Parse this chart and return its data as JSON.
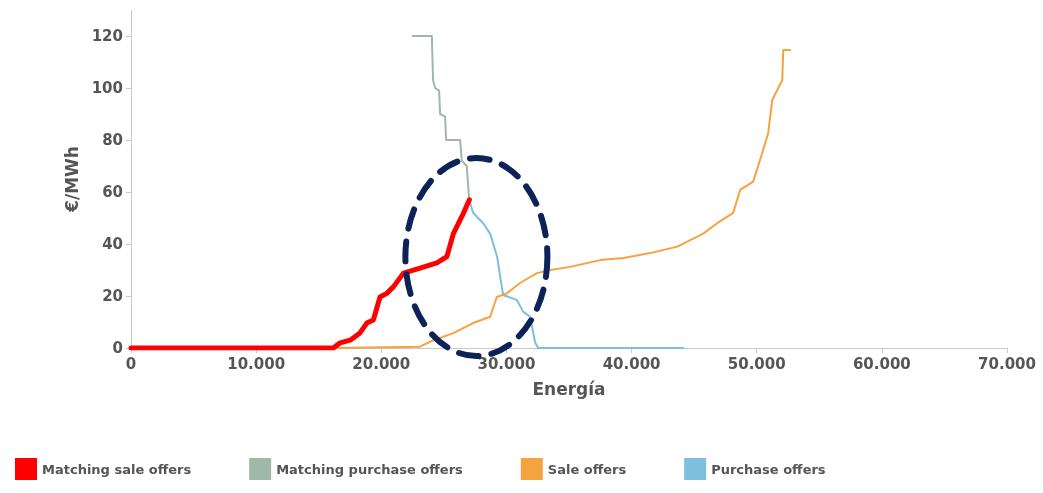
{
  "chart_data": {
    "type": "line",
    "xlabel": "Energía",
    "ylabel": "€/MWh",
    "xlim": [
      0,
      70000
    ],
    "xticks": [
      0,
      {
        "value": 10000,
        "label": "10.000"
      },
      {
        "value": 20000,
        "label": "20.000"
      },
      {
        "value": 30000,
        "label": "30.000"
      },
      {
        "value": 40000,
        "label": "40.000"
      },
      {
        "value": 50000,
        "label": "50.000"
      },
      {
        "value": 60000,
        "label": "60.000"
      },
      {
        "value": 70000,
        "label": "70.000"
      }
    ],
    "ylim": [
      0,
      130
    ],
    "yticks": [
      0,
      20,
      40,
      60,
      80,
      100,
      120
    ],
    "grid": false,
    "legend": "bottom",
    "marker": "none",
    "line_style": "solid",
    "series": [
      {
        "name": "Matching sale offers",
        "color": "#ff0000",
        "x": [
          0,
          16170,
          16710,
          17510,
          18300,
          18840,
          19370,
          19900,
          20440,
          20970,
          21770,
          23100,
          24440,
          25240,
          25760,
          26560,
          27040
        ],
        "values": [
          0,
          0,
          2,
          3,
          5.8,
          9.6,
          10.8,
          19.6,
          21,
          23.5,
          28.8,
          30.7,
          32.7,
          35.1,
          44,
          51.8,
          57
        ]
      },
      {
        "name": "Matching purchase offers",
        "color": "#9fb8a8",
        "x": [
          22520,
          24040,
          24140,
          24300,
          24620,
          24700,
          25100,
          25180,
          26300,
          26430,
          26830,
          27020
        ],
        "values": [
          120,
          120,
          103,
          100,
          99,
          90,
          89,
          80,
          80,
          72,
          70,
          57
        ]
      },
      {
        "name": "Sale offers",
        "color": "#f5a340",
        "x": [
          16170,
          23100,
          24170,
          25760,
          27340,
          28700,
          29230,
          30030,
          31090,
          32430,
          33490,
          35090,
          37490,
          39330,
          41490,
          43650,
          45730,
          46840,
          48120,
          48680,
          49720,
          50440,
          50920,
          51240,
          52040,
          52120,
          52680
        ],
        "values": [
          0,
          0.5,
          3,
          5.7,
          9.6,
          12,
          19.6,
          21,
          25,
          28.8,
          30,
          31.2,
          33.8,
          34.6,
          36.5,
          39,
          44,
          48,
          52,
          60.8,
          64,
          75,
          82.7,
          95.4,
          103,
          114.6,
          114.6
        ]
      },
      {
        "name": "Purchase offers",
        "color": "#7dbfdd",
        "x": [
          27020,
          27340,
          28140,
          28700,
          29260,
          29630,
          29740,
          30830,
          31330,
          31890,
          32300,
          32530,
          44120
        ],
        "values": [
          57,
          52,
          48,
          44,
          35,
          23.5,
          20.4,
          18.5,
          14,
          12,
          2,
          0,
          0
        ]
      }
    ]
  }
}
